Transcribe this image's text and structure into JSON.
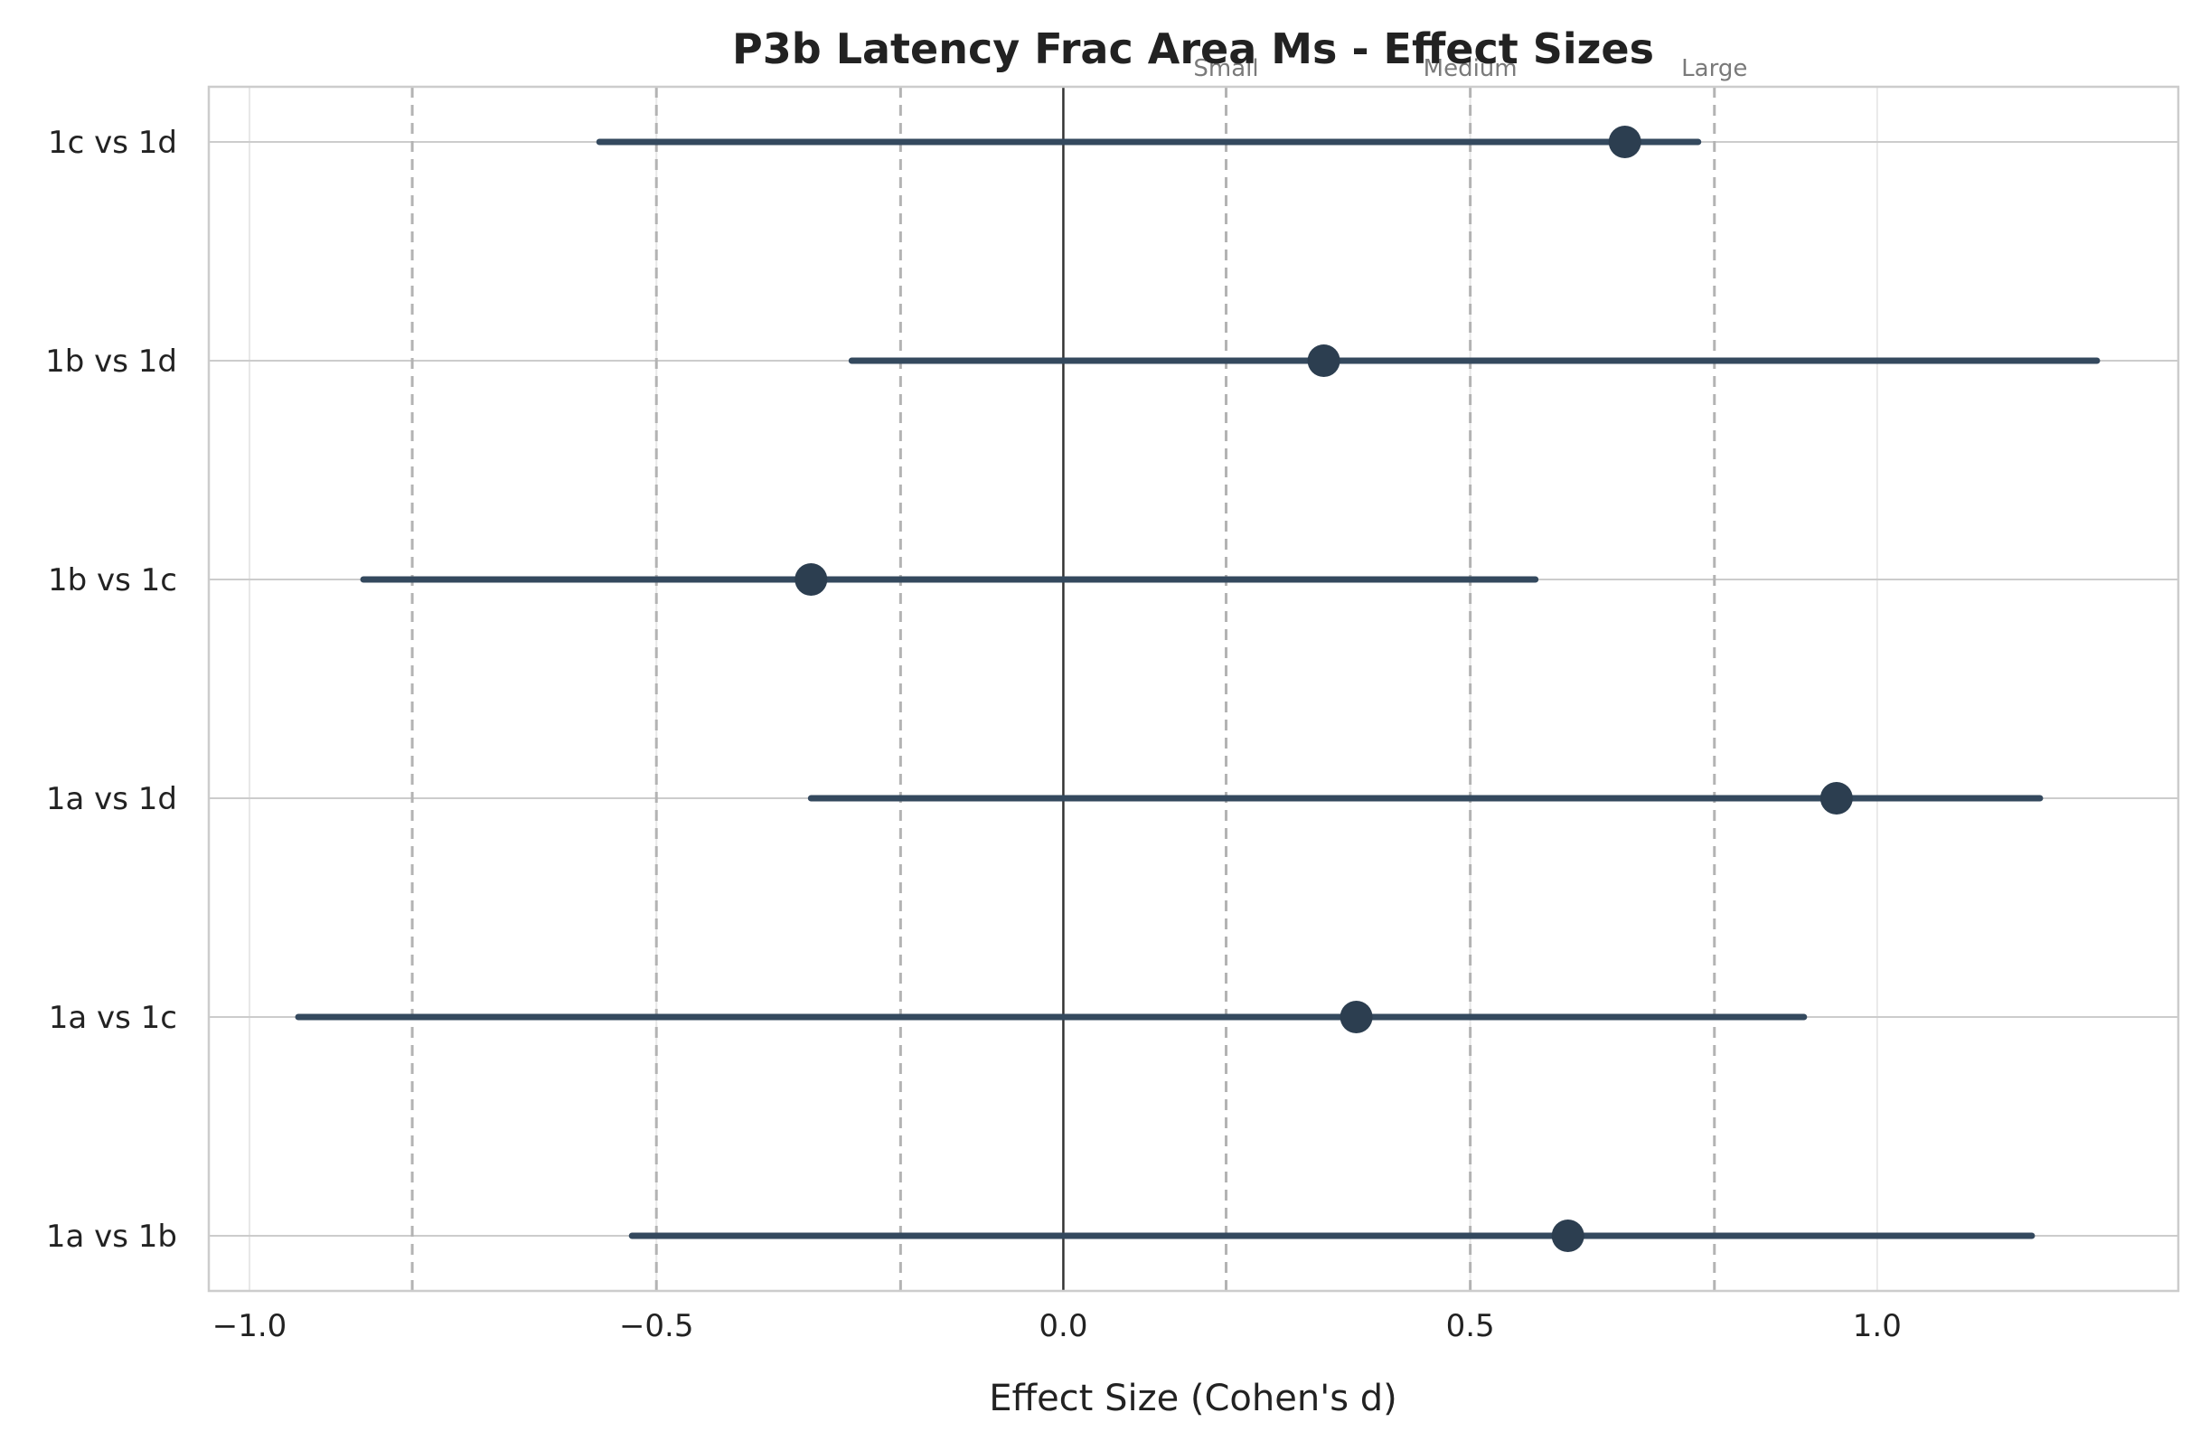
{
  "chart_data": {
    "type": "forest",
    "title": "P3b Latency Frac Area Ms - Effect Sizes",
    "xlabel": "Effect Size (Cohen's d)",
    "ylabel": "",
    "xlim": [
      -1.05,
      1.37
    ],
    "xticks": [
      -1.0,
      -0.5,
      0.0,
      0.5,
      1.0
    ],
    "xtick_labels": [
      "−1.0",
      "−0.5",
      "0.0",
      "0.5",
      "1.0"
    ],
    "grid": true,
    "categories": [
      "1a vs 1b",
      "1a vs 1c",
      "1a vs 1d",
      "1b vs 1c",
      "1b vs 1d",
      "1c vs 1d"
    ],
    "series": [
      {
        "effect": [
          0.62,
          0.36,
          0.95,
          -0.31,
          0.32,
          0.69
        ],
        "ci_low": [
          -0.53,
          -0.94,
          -0.31,
          -0.86,
          -0.26,
          -0.57
        ],
        "ci_high": [
          1.19,
          0.91,
          1.2,
          0.58,
          1.27,
          0.78
        ]
      }
    ],
    "reference_line": 0.0,
    "thresholds": [
      {
        "value": 0.2,
        "label": "Small"
      },
      {
        "value": 0.5,
        "label": "Medium"
      },
      {
        "value": 0.8,
        "label": "Large"
      },
      {
        "value": -0.2,
        "label": ""
      },
      {
        "value": -0.5,
        "label": ""
      },
      {
        "value": -0.8,
        "label": ""
      }
    ],
    "colors": {
      "marker": "#2c3e50",
      "ci_line": "#34495e",
      "grid": "#cccccc",
      "threshold": "#b3b3b3",
      "zero_line": "#333333",
      "spine": "#cccccc"
    }
  }
}
